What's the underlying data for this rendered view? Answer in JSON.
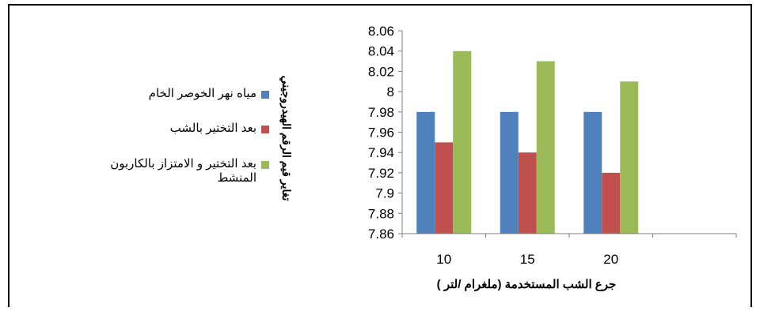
{
  "chart_data": {
    "type": "bar",
    "categories": [
      "10",
      "15",
      "20",
      ""
    ],
    "series": [
      {
        "name": "مياه نهر الخوصر الخام",
        "color": "#4F81BD",
        "values": [
          7.98,
          7.98,
          7.98,
          null
        ]
      },
      {
        "name": "بعد التختير بالشب",
        "color": "#C0504D",
        "values": [
          7.95,
          7.94,
          7.92,
          null
        ]
      },
      {
        "name": "بعد التختير و الامتزاز بالكاربون المنشط",
        "color": "#9BBB59",
        "values": [
          8.04,
          8.03,
          8.01,
          null
        ]
      }
    ],
    "yticks": [
      "7.86",
      "7.88",
      "7.9",
      "7.92",
      "7.94",
      "7.96",
      "7.98",
      "8",
      "8.02",
      "8.04",
      "8.06"
    ],
    "ylim": [
      7.86,
      8.06
    ],
    "ylabel": "تغاير قيم الرقم الهيدروجيني",
    "xlabel": "جرع الشب المستخدمة (ملغرام /لتر )",
    "grid": false,
    "legend_position": "left"
  }
}
